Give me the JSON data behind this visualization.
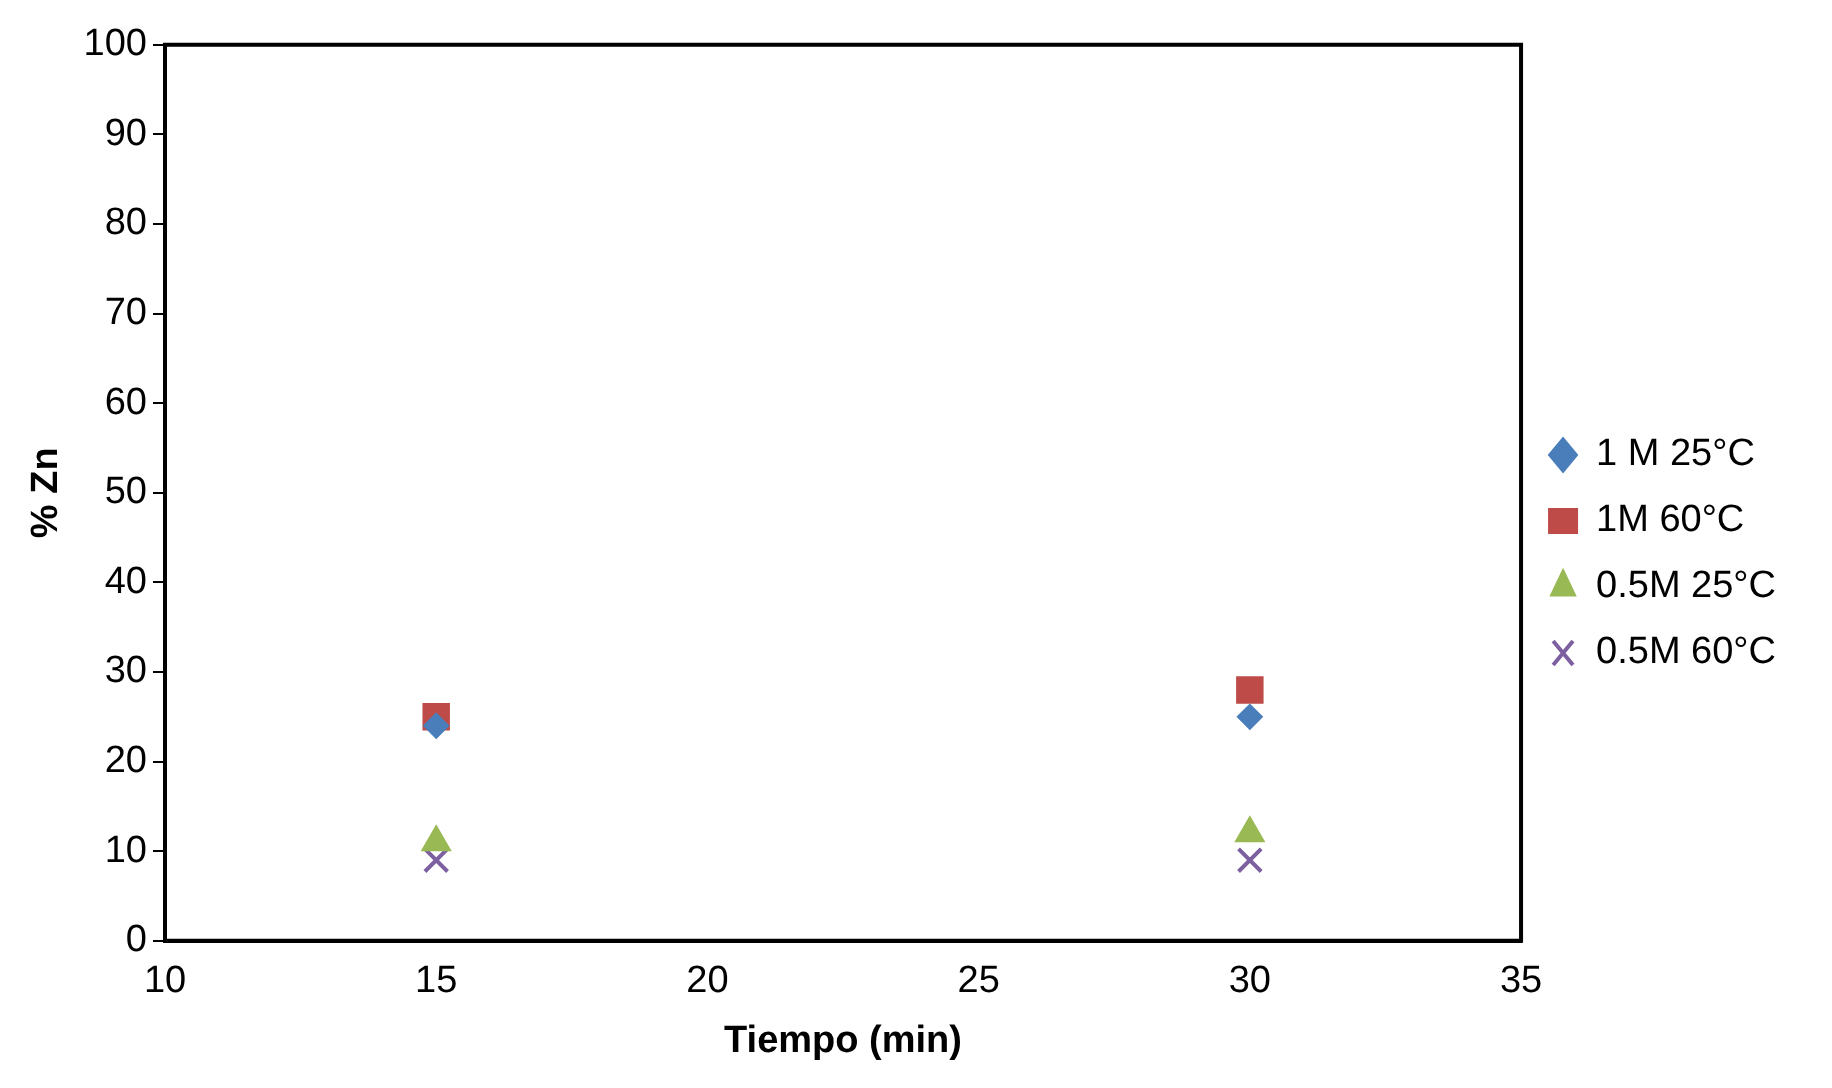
{
  "chart_data": {
    "type": "scatter",
    "xlabel": "Tiempo (min)",
    "ylabel": "% Zn",
    "x": [
      15,
      30
    ],
    "xlim": [
      10,
      35
    ],
    "xticks": [
      10,
      15,
      20,
      25,
      30,
      35
    ],
    "ylim": [
      0,
      100
    ],
    "yticks": [
      0,
      10,
      20,
      30,
      40,
      50,
      60,
      70,
      80,
      90,
      100
    ],
    "grid": false,
    "legend": "right",
    "series": [
      {
        "name": "1 M 25°C",
        "color": "#4a7ebb",
        "marker": "diamond",
        "values": [
          24,
          25
        ]
      },
      {
        "name": "1M 60°C",
        "color": "#be4b48",
        "marker": "square",
        "values": [
          25,
          28
        ]
      },
      {
        "name": "0.5M 25°C",
        "color": "#98b954",
        "marker": "triangle",
        "values": [
          11,
          12
        ]
      },
      {
        "name": "0.5M 60°C",
        "color": "#7d60a0",
        "marker": "cross",
        "values": [
          9,
          9
        ]
      }
    ]
  }
}
